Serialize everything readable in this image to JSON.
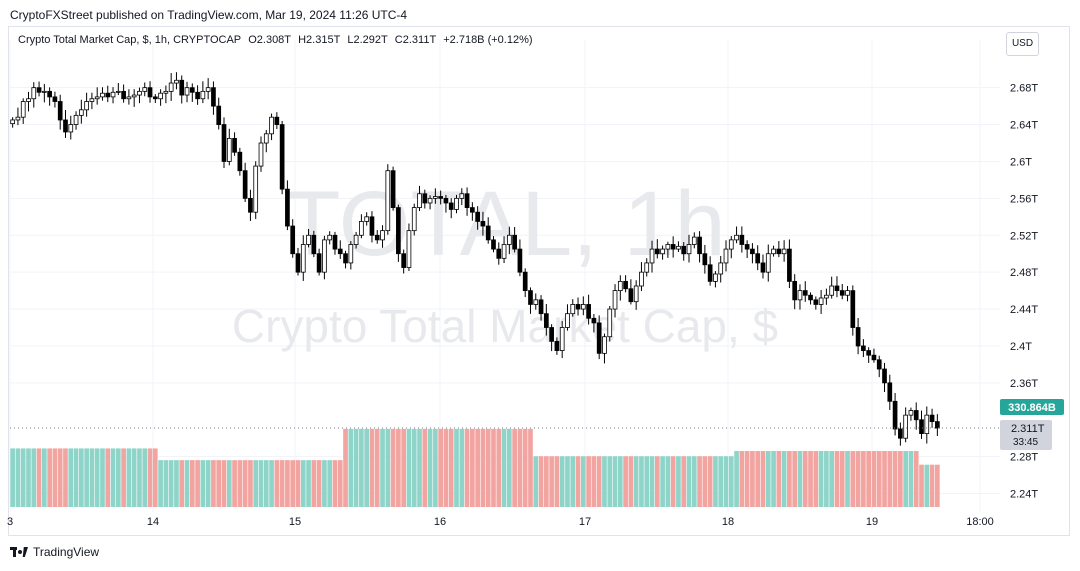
{
  "header": {
    "publisher_line": "CryptoFXStreet published on TradingView.com, Mar 19, 2024 11:26 UTC-4"
  },
  "legend": {
    "symbol": "Crypto Total Market Cap, $, 1h, CRYPTOCAP",
    "open": "O2.308T",
    "high": "H2.315T",
    "low": "L2.292T",
    "close": "C2.311T",
    "change": "+2.718B (+0.12%)"
  },
  "currency_button": "USD",
  "watermark": {
    "line1": "TOTAL, 1h",
    "line2": "Crypto Total Market Cap, $"
  },
  "footer": {
    "brand": "TradingView"
  },
  "colors": {
    "up_candle_body": "#ffffff",
    "down_candle_body": "#000000",
    "volume_up": "#8fd4c9",
    "volume_down": "#f2a4a1",
    "volume_label_bg": "#26a69a",
    "price_label_bg": "#d1d4dc",
    "grid": "#f0f3fa",
    "watermark": "#e8e9ed"
  },
  "chart_data": {
    "type": "candlestick",
    "interval": "1h",
    "y_axis_unit": "T",
    "ylim": [
      2.22,
      2.71
    ],
    "y_ticks": [
      "2.68T",
      "2.64T",
      "2.6T",
      "2.56T",
      "2.52T",
      "2.48T",
      "2.44T",
      "2.4T",
      "2.36T",
      "2.28T",
      "2.24T"
    ],
    "x_ticks": [
      "3",
      "14",
      "15",
      "16",
      "17",
      "18",
      "19",
      "18:00"
    ],
    "current_price_label": "2.311T",
    "countdown_label": "33:45",
    "volume_label": "330.864B",
    "close_series": [
      2.645,
      2.648,
      2.665,
      2.668,
      2.68,
      2.675,
      2.676,
      2.67,
      2.665,
      2.645,
      2.632,
      2.64,
      2.65,
      2.656,
      2.665,
      2.668,
      2.67,
      2.674,
      2.67,
      2.675,
      2.676,
      2.668,
      2.67,
      2.672,
      2.676,
      2.68,
      2.67,
      2.668,
      2.674,
      2.676,
      2.685,
      2.688,
      2.672,
      2.68,
      2.675,
      2.668,
      2.676,
      2.68,
      2.66,
      2.64,
      2.6,
      2.625,
      2.61,
      2.59,
      2.56,
      2.545,
      2.595,
      2.62,
      2.63,
      2.648,
      2.64,
      2.57,
      2.53,
      2.5,
      2.48,
      2.51,
      2.52,
      2.5,
      2.48,
      2.515,
      2.52,
      2.505,
      2.5,
      2.49,
      2.51,
      2.52,
      2.535,
      2.54,
      2.52,
      2.515,
      2.525,
      2.59,
      2.55,
      2.5,
      2.485,
      2.525,
      2.55,
      2.565,
      2.555,
      2.56,
      2.562,
      2.56,
      2.555,
      2.548,
      2.56,
      2.565,
      2.55,
      2.545,
      2.535,
      2.53,
      2.515,
      2.505,
      2.495,
      2.51,
      2.52,
      2.505,
      2.48,
      2.46,
      2.445,
      2.45,
      2.435,
      2.42,
      2.405,
      2.395,
      2.42,
      2.435,
      2.445,
      2.44,
      2.445,
      2.43,
      2.425,
      2.392,
      2.41,
      2.44,
      2.46,
      2.47,
      2.462,
      2.448,
      2.465,
      2.48,
      2.49,
      2.505,
      2.5,
      2.505,
      2.51,
      2.505,
      2.508,
      2.5,
      2.51,
      2.518,
      2.5,
      2.488,
      2.47,
      2.478,
      2.49,
      2.505,
      2.515,
      2.52,
      2.51,
      2.505,
      2.5,
      2.49,
      2.48,
      2.5,
      2.505,
      2.5,
      2.505,
      2.47,
      2.45,
      2.46,
      2.455,
      2.45,
      2.445,
      2.452,
      2.455,
      2.465,
      2.46,
      2.455,
      2.46,
      2.42,
      2.4,
      2.395,
      2.39,
      2.385,
      2.375,
      2.36,
      2.34,
      2.31,
      2.3,
      2.325,
      2.33,
      2.32,
      2.305,
      2.325,
      2.318,
      2.311
    ],
    "volume": {
      "ylim": [
        0,
        2.0
      ],
      "segments": [
        {
          "from": 0,
          "to": 28,
          "value": 0.9
        },
        {
          "from": 28,
          "to": 63,
          "value": 0.72
        },
        {
          "from": 63,
          "to": 99,
          "value": 1.2
        },
        {
          "from": 99,
          "to": 137,
          "value": 0.78
        },
        {
          "from": 137,
          "to": 172,
          "value": 0.86
        },
        {
          "from": 172,
          "to": 209,
          "value": 0.65
        },
        {
          "from": 209,
          "to": 228,
          "value": 0.74
        },
        {
          "from": 228,
          "to": 233,
          "value": 0.94
        }
      ]
    }
  }
}
